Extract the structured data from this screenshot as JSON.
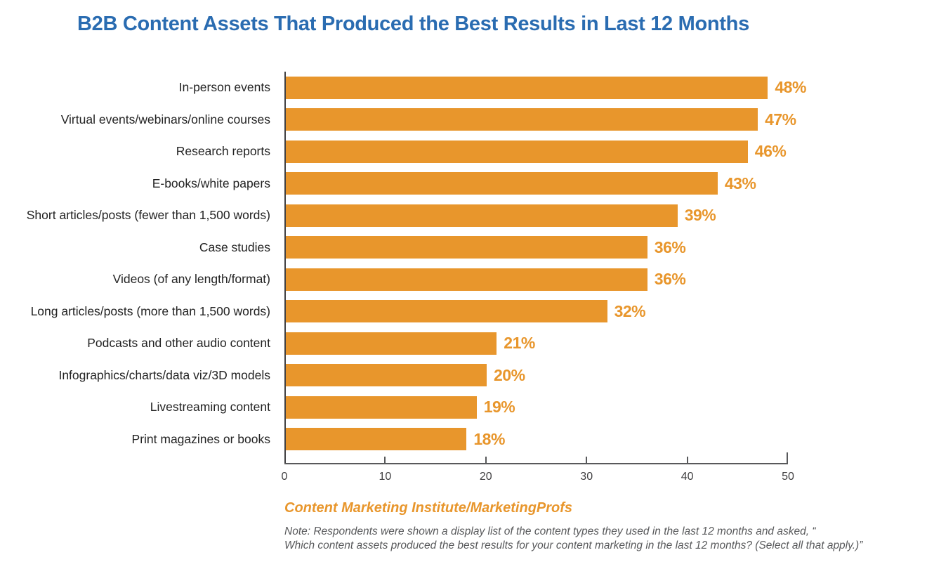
{
  "page": {
    "background": "#FFFFFF",
    "title_color": "#2A6CB1"
  },
  "chart_data": {
    "type": "bar",
    "orientation": "horizontal",
    "title": "B2B Content Assets That Produced the Best Results in Last 12 Months",
    "categories": [
      "In-person events",
      "Virtual events/webinars/online courses",
      "Research reports",
      "E-books/white papers",
      "Short articles/posts (fewer than 1,500 words)",
      "Case studies",
      "Videos (of any length/format)",
      "Long articles/posts (more than 1,500 words)",
      "Podcasts and other audio content",
      "Infographics/charts/data viz/3D models",
      "Livestreaming content",
      "Print magazines or books"
    ],
    "values": [
      48,
      47,
      46,
      43,
      39,
      36,
      36,
      32,
      21,
      20,
      19,
      18
    ],
    "value_suffix": "%",
    "xlim": [
      0,
      50
    ],
    "x_ticks": [
      "0",
      "10",
      "20",
      "30",
      "40",
      "50"
    ],
    "bar_color": "#E8962C",
    "value_label_color": "#E8962C",
    "grid": false,
    "legend": false,
    "xlabel": "",
    "ylabel": ""
  },
  "footer": {
    "source": "Content Marketing Institute/MarketingProfs",
    "source_color": "#E8962C",
    "note_line1": "Note: Respondents were shown a display list of the content types they used in the last 12 months and asked, “",
    "note_line2": "Which content assets produced the best results for your content marketing in the last 12 months? (Select all that apply.)”"
  }
}
